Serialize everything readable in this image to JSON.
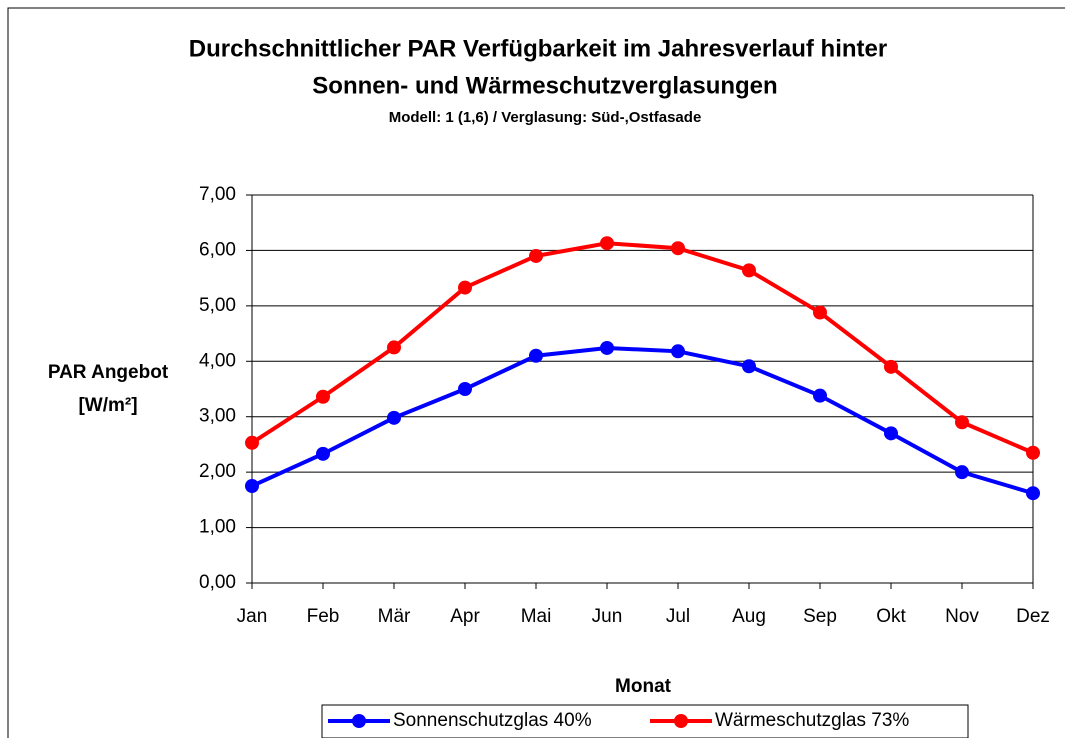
{
  "chart_data": {
    "type": "line",
    "title": [
      "Durchschnittlicher PAR Verfügbarkeit im Jahresverlauf hinter",
      "Sonnen- und Wärmeschutzverglasungen"
    ],
    "subtitle": "Modell: 1 (1,6) / Verglasung: Süd-,Ostfasade",
    "xlabel": "Monat",
    "ylabel": [
      "PAR Angebot",
      "[W/m²]"
    ],
    "categories": [
      "Jan",
      "Feb",
      "Mär",
      "Apr",
      "Mai",
      "Jun",
      "Jul",
      "Aug",
      "Sep",
      "Okt",
      "Nov",
      "Dez"
    ],
    "series": [
      {
        "name": "Sonnenschutzglas 40%",
        "color": "#0000ff",
        "values": [
          1.75,
          2.33,
          2.98,
          3.5,
          4.1,
          4.24,
          4.18,
          3.91,
          3.38,
          2.7,
          2.0,
          1.62
        ]
      },
      {
        "name": "Wärmeschutzglas 73%",
        "color": "#ff0000",
        "values": [
          2.53,
          3.36,
          4.25,
          5.33,
          5.9,
          6.13,
          6.04,
          5.64,
          4.88,
          3.9,
          2.9,
          2.35
        ]
      }
    ],
    "ylim": [
      0,
      7
    ],
    "yticks": [
      {
        "value": 0,
        "label": "0,00"
      },
      {
        "value": 1,
        "label": "1,00"
      },
      {
        "value": 2,
        "label": "2,00"
      },
      {
        "value": 3,
        "label": "3,00"
      },
      {
        "value": 4,
        "label": "4,00"
      },
      {
        "value": 5,
        "label": "5,00"
      },
      {
        "value": 6,
        "label": "6,00"
      },
      {
        "value": 7,
        "label": "7,00"
      }
    ],
    "grid": true,
    "legend": "bottom"
  }
}
